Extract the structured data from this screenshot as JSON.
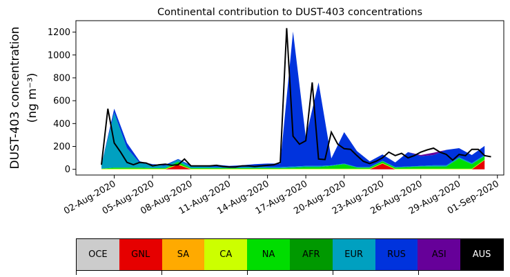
{
  "chart_data": {
    "type": "area",
    "title": "Continental contribution to DUST-403 concentrations",
    "ylabel_line1": "DUST-403 concentration",
    "ylabel_line2": "(ng m⁻³)",
    "xlabel": "",
    "ylim": [
      -50,
      1300
    ],
    "xlim": [
      "2020-07-30",
      "2020-09-01"
    ],
    "yticks": [
      0,
      200,
      400,
      600,
      800,
      1000,
      1200
    ],
    "xticks": [
      "02-Aug-2020",
      "05-Aug-2020",
      "08-Aug-2020",
      "11-Aug-2020",
      "14-Aug-2020",
      "17-Aug-2020",
      "20-Aug-2020",
      "23-Aug-2020",
      "26-Aug-2020",
      "29-Aug-2020",
      "01-Sep-2020"
    ],
    "grid": false,
    "legend_placement": "bottom colorbar",
    "x": [
      "2020-08-01",
      "2020-08-02",
      "2020-08-03",
      "2020-08-04",
      "2020-08-05",
      "2020-08-06",
      "2020-08-07",
      "2020-08-08",
      "2020-08-09",
      "2020-08-10",
      "2020-08-11",
      "2020-08-12",
      "2020-08-13",
      "2020-08-14",
      "2020-08-15",
      "2020-08-16",
      "2020-08-17",
      "2020-08-18",
      "2020-08-19",
      "2020-08-20",
      "2020-08-21",
      "2020-08-22",
      "2020-08-23",
      "2020-08-24",
      "2020-08-25",
      "2020-08-26",
      "2020-08-27",
      "2020-08-28",
      "2020-08-29",
      "2020-08-30",
      "2020-08-31"
    ],
    "total": [
      40,
      530,
      230,
      150,
      60,
      40,
      60,
      55,
      30,
      40,
      45,
      35,
      40,
      90,
      30,
      30,
      30,
      30,
      35,
      25,
      20,
      20,
      30,
      30,
      25,
      30,
      35,
      40,
      60,
      1235,
      290,
      220,
      250,
      760,
      90,
      85,
      325,
      220,
      180,
      175,
      120,
      70,
      50,
      70,
      100,
      150,
      120,
      140,
      100,
      120,
      150,
      170,
      185,
      150,
      130,
      80,
      130,
      120,
      175,
      175,
      120,
      110
    ],
    "series": [
      {
        "name": "OCE",
        "color": "#cccccc",
        "values": [
          0,
          0,
          0,
          0,
          0,
          0,
          0,
          0,
          0,
          0,
          0,
          0,
          0,
          0,
          0,
          0,
          0,
          0,
          0,
          0,
          0,
          0,
          0,
          0,
          0,
          0,
          0,
          0,
          0,
          0,
          0
        ]
      },
      {
        "name": "GNL",
        "color": "#e60000",
        "values": [
          0,
          0,
          0,
          0,
          0,
          0,
          40,
          0,
          0,
          0,
          0,
          0,
          0,
          0,
          0,
          0,
          0,
          0,
          0,
          0,
          0,
          0,
          50,
          0,
          0,
          0,
          0,
          0,
          0,
          0,
          80
        ]
      },
      {
        "name": "SA",
        "color": "#ffaa00",
        "values": [
          0,
          0,
          0,
          0,
          0,
          0,
          0,
          0,
          0,
          0,
          0,
          0,
          0,
          0,
          0,
          0,
          0,
          0,
          0,
          0,
          0,
          0,
          0,
          0,
          0,
          0,
          0,
          0,
          0,
          0,
          0
        ]
      },
      {
        "name": "CA",
        "color": "#ccff00",
        "values": [
          5,
          5,
          5,
          5,
          5,
          5,
          5,
          5,
          5,
          5,
          5,
          5,
          5,
          5,
          5,
          5,
          5,
          5,
          5,
          5,
          5,
          5,
          5,
          5,
          5,
          5,
          5,
          5,
          5,
          5,
          5
        ]
      },
      {
        "name": "NA",
        "color": "#00dd00",
        "values": [
          0,
          10,
          10,
          10,
          5,
          5,
          20,
          5,
          5,
          5,
          5,
          5,
          5,
          5,
          5,
          10,
          15,
          15,
          25,
          40,
          10,
          10,
          15,
          10,
          15,
          20,
          20,
          20,
          90,
          40,
          30
        ]
      },
      {
        "name": "AFR",
        "color": "#009900",
        "values": [
          0,
          0,
          0,
          0,
          0,
          0,
          0,
          0,
          0,
          0,
          0,
          0,
          0,
          0,
          0,
          0,
          0,
          0,
          0,
          0,
          0,
          0,
          0,
          0,
          0,
          0,
          0,
          0,
          0,
          0,
          0
        ]
      },
      {
        "name": "EUR",
        "color": "#00a0c0",
        "values": [
          35,
          480,
          170,
          40,
          30,
          20,
          20,
          15,
          15,
          10,
          10,
          10,
          15,
          10,
          10,
          10,
          10,
          10,
          5,
          5,
          5,
          5,
          5,
          5,
          5,
          5,
          10,
          10,
          10,
          10,
          10
        ]
      },
      {
        "name": "RUS",
        "color": "#0033dd",
        "values": [
          0,
          35,
          45,
          15,
          5,
          10,
          5,
          10,
          5,
          20,
          10,
          15,
          20,
          30,
          30,
          1180,
          250,
          730,
          60,
          275,
          140,
          50,
          55,
          40,
          125,
          85,
          90,
          135,
          80,
          70,
          80
        ]
      },
      {
        "name": "ASI",
        "color": "#660099",
        "values": [
          0,
          0,
          0,
          0,
          0,
          0,
          0,
          0,
          0,
          0,
          0,
          0,
          0,
          0,
          0,
          0,
          0,
          0,
          0,
          0,
          0,
          0,
          0,
          0,
          0,
          10,
          20,
          0,
          0,
          0,
          0
        ]
      },
      {
        "name": "AUS",
        "color": "#000000",
        "values": [
          0,
          0,
          0,
          0,
          0,
          0,
          0,
          0,
          0,
          0,
          0,
          0,
          0,
          0,
          0,
          0,
          0,
          0,
          0,
          0,
          0,
          0,
          0,
          0,
          0,
          0,
          0,
          0,
          0,
          0,
          0
        ]
      }
    ]
  },
  "legend": {
    "items": [
      {
        "label": "OCE",
        "color": "#cccccc",
        "text_color": "#000000"
      },
      {
        "label": "GNL",
        "color": "#e60000",
        "text_color": "#000000"
      },
      {
        "label": "SA",
        "color": "#ffaa00",
        "text_color": "#000000"
      },
      {
        "label": "CA",
        "color": "#ccff00",
        "text_color": "#000000"
      },
      {
        "label": "NA",
        "color": "#00dd00",
        "text_color": "#000000"
      },
      {
        "label": "AFR",
        "color": "#009900",
        "text_color": "#000000"
      },
      {
        "label": "EUR",
        "color": "#00a0c0",
        "text_color": "#000000"
      },
      {
        "label": "RUS",
        "color": "#0033dd",
        "text_color": "#000000"
      },
      {
        "label": "ASI",
        "color": "#660099",
        "text_color": "#000000"
      },
      {
        "label": "AUS",
        "color": "#000000",
        "text_color": "#ffffff"
      }
    ]
  }
}
